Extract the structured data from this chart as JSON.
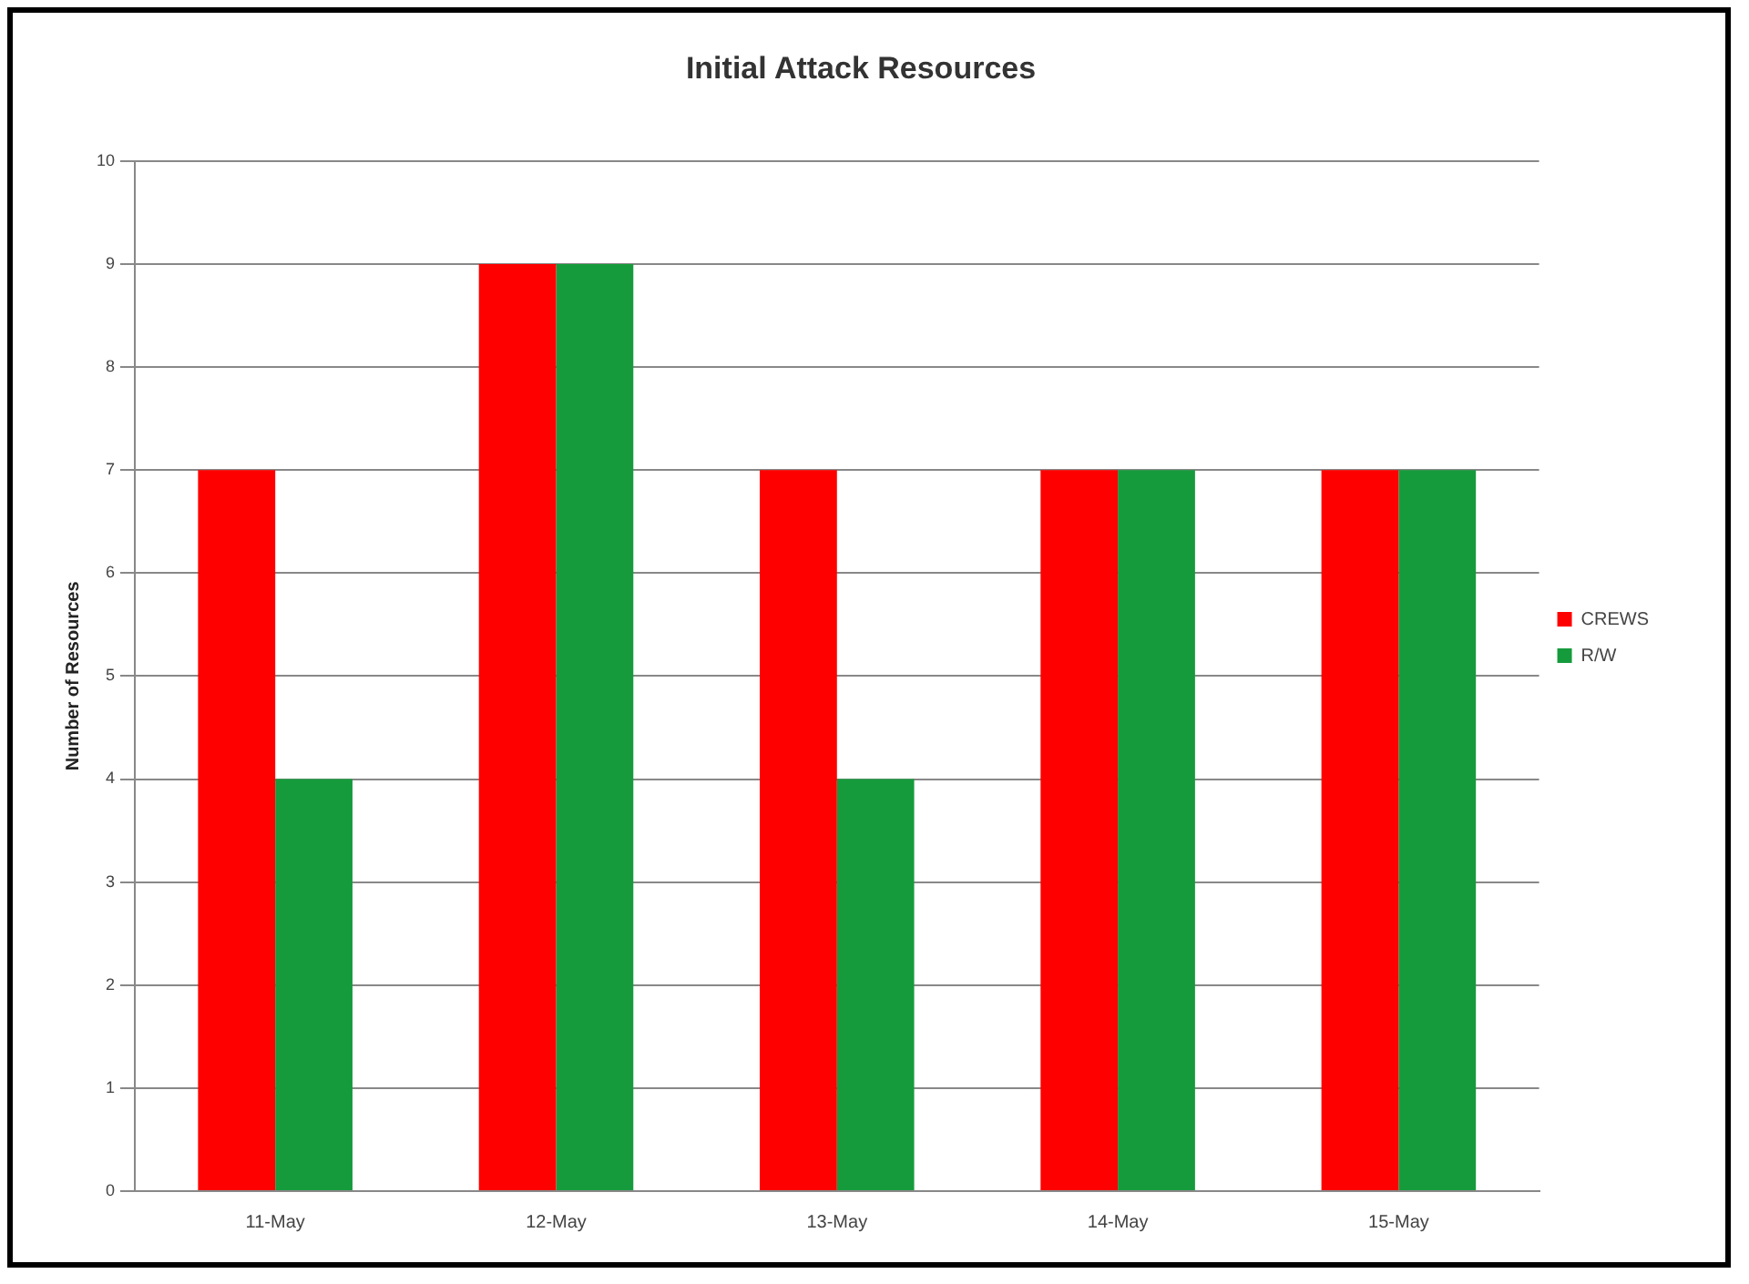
{
  "chart_data": {
    "type": "bar",
    "title": "Initial Attack Resources",
    "ylabel": "Number of Resources",
    "categories": [
      "11-May",
      "12-May",
      "13-May",
      "14-May",
      "15-May"
    ],
    "series": [
      {
        "name": "CREWS",
        "color": "#ff0000",
        "values": [
          7,
          9,
          7,
          7,
          7
        ]
      },
      {
        "name": "R/W",
        "color": "#169b3c",
        "values": [
          4,
          9,
          4,
          7,
          7
        ]
      }
    ],
    "ylim": [
      0,
      10
    ],
    "yticks": [
      0,
      1,
      2,
      3,
      4,
      5,
      6,
      7,
      8,
      9,
      10
    ],
    "grid": "y",
    "legend": "right"
  }
}
